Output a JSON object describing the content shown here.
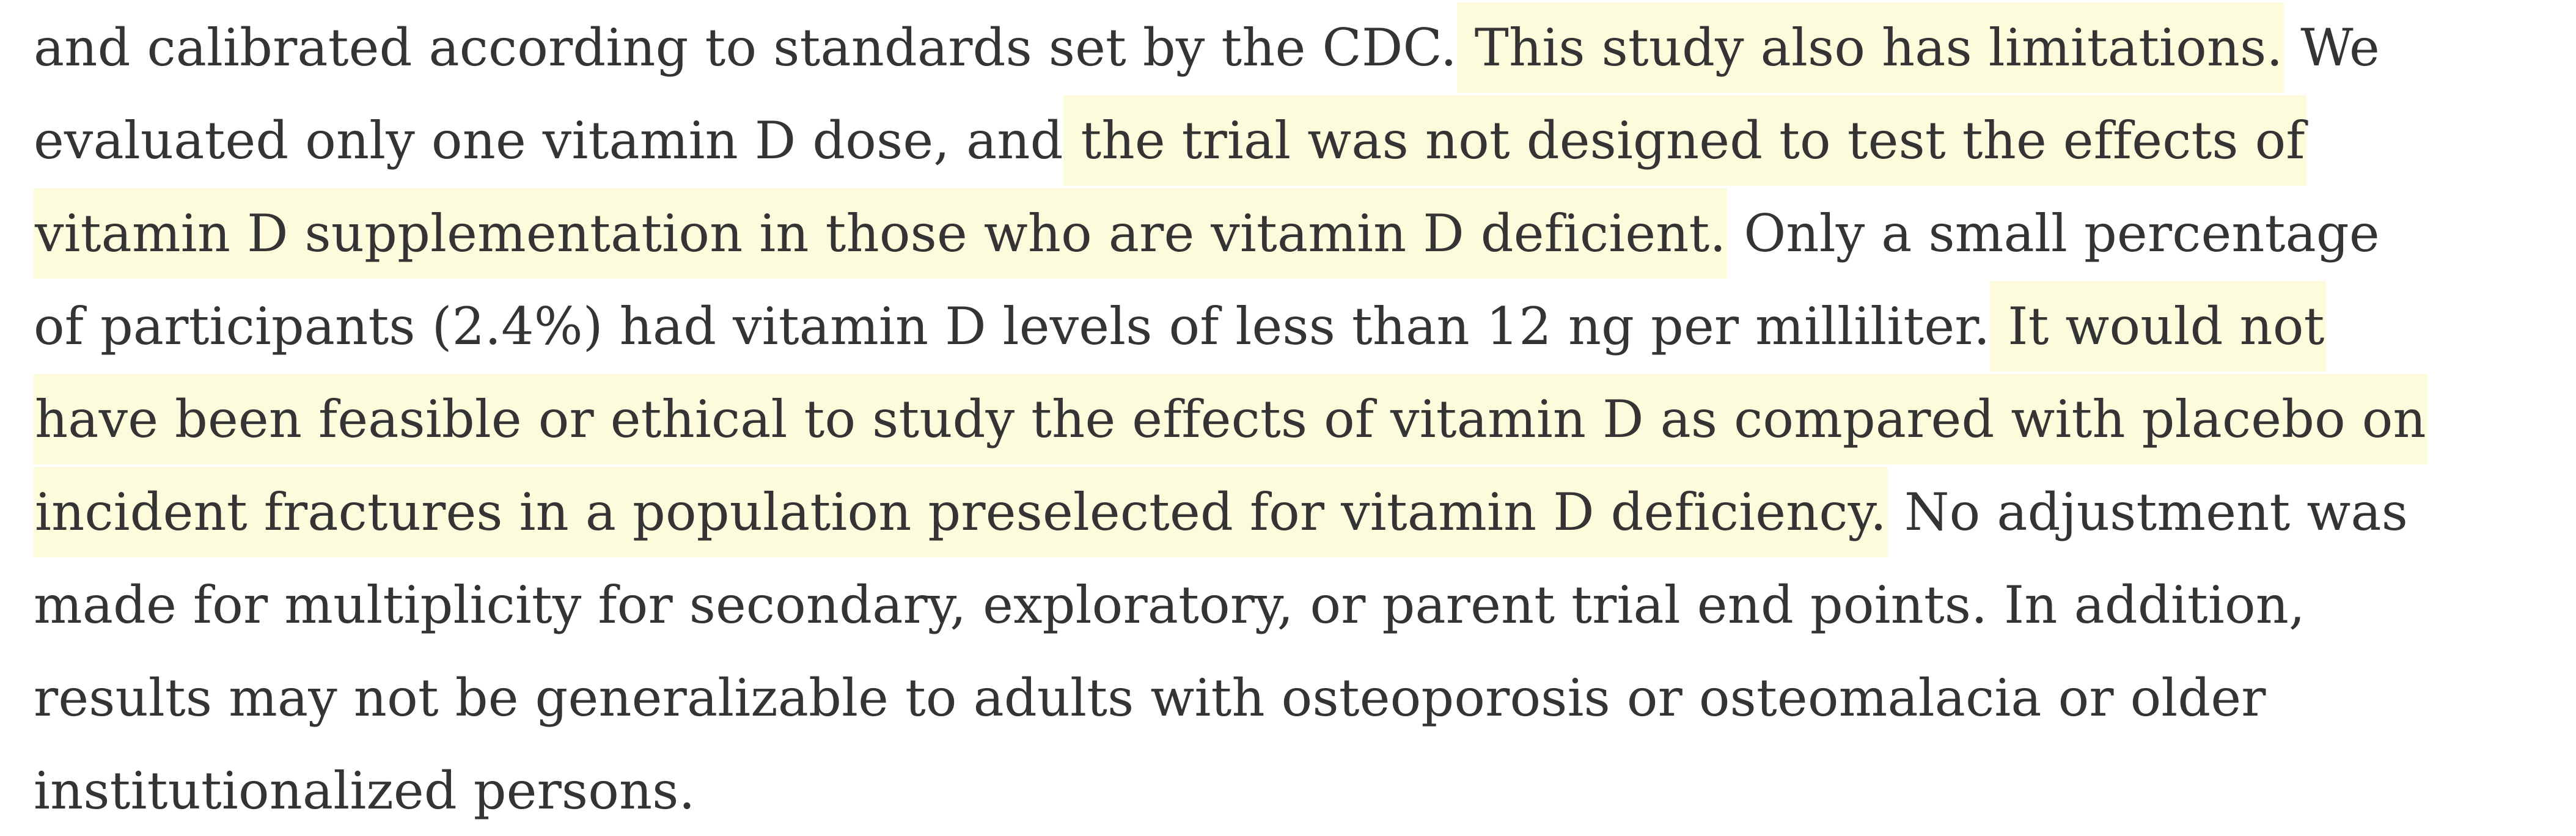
{
  "colors": {
    "background": "#ffffff",
    "text": "#343434",
    "highlight": "#fcfbdb"
  },
  "paragraph": {
    "lines": [
      {
        "segments": [
          {
            "text": "and calibrated according to standards set by the CDC.",
            "highlight": false
          },
          {
            "text": " This study also has limitations.",
            "highlight": true
          },
          {
            "text": " We",
            "highlight": false
          }
        ]
      },
      {
        "segments": [
          {
            "text": "evaluated only one vitamin D dose, and",
            "highlight": false
          },
          {
            "text": " the trial was not designed to test the effects of",
            "highlight": true
          }
        ]
      },
      {
        "segments": [
          {
            "text": "vitamin D supplementation in those who are vitamin D deficient.",
            "highlight": true
          },
          {
            "text": " Only a small percentage",
            "highlight": false
          }
        ]
      },
      {
        "segments": [
          {
            "text": "of participants (2.4%) had vitamin D levels of less than 12 ng per milliliter.",
            "highlight": false
          },
          {
            "text": " It would not",
            "highlight": true
          }
        ]
      },
      {
        "segments": [
          {
            "text": "have been feasible or ethical to study the effects of vitamin D as compared with placebo on",
            "highlight": true
          }
        ]
      },
      {
        "segments": [
          {
            "text": "incident fractures in a population preselected for vitamin D deficiency.",
            "highlight": true
          },
          {
            "text": " No adjustment was",
            "highlight": false
          }
        ]
      },
      {
        "segments": [
          {
            "text": "made for multiplicity for secondary, exploratory, or parent trial end points. In addition,",
            "highlight": false
          }
        ]
      },
      {
        "segments": [
          {
            "text": "results may not be generalizable to adults with osteoporosis or osteomalacia or older",
            "highlight": false
          }
        ]
      },
      {
        "segments": [
          {
            "text": "institutionalized persons.",
            "highlight": false
          }
        ]
      }
    ]
  }
}
